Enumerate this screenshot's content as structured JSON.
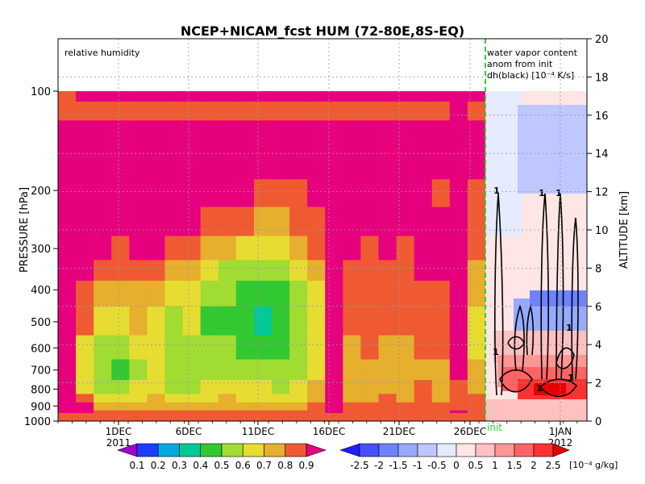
{
  "chart_data": {
    "type": "heatmap",
    "title": "NCEP+NICAM_fcst HUM (72-80E,8S-EQ)",
    "panels": {
      "left_label": "relative humidity",
      "right_labels": [
        "water vapor content",
        "anom from init",
        "dh(black) [10⁻⁴ K/s]"
      ],
      "init_marker": "init"
    },
    "y_left": {
      "label": "PRESSURE [hPa]",
      "scale": "log",
      "range": [
        1000,
        100
      ],
      "ticks": [
        "100",
        "200",
        "300",
        "400",
        "500",
        "600",
        "700",
        "800",
        "900",
        "1000"
      ]
    },
    "y_right": {
      "label": "ALTITUDE [km]",
      "range": [
        0,
        20
      ],
      "ticks": [
        "0",
        "2",
        "4",
        "6",
        "8",
        "10",
        "12",
        "14",
        "16",
        "18",
        "20"
      ]
    },
    "x": {
      "ticks": [
        "1DEC",
        "6DEC",
        "11DEC",
        "16DEC",
        "21DEC",
        "26DEC",
        "1JAN"
      ],
      "year_labels": [
        "2011",
        "2012"
      ]
    },
    "colorbar_rh": {
      "labels": [
        "0.1",
        "0.2",
        "0.3",
        "0.4",
        "0.5",
        "0.6",
        "0.7",
        "0.8",
        "0.9"
      ],
      "colors": [
        "#a000c8",
        "#1e3cff",
        "#00aadc",
        "#00c896",
        "#32c832",
        "#a0dc32",
        "#e6dc32",
        "#e6af2d",
        "#f05a32",
        "#e6007d"
      ]
    },
    "colorbar_anom": {
      "labels": [
        "-2.5",
        "-2",
        "-1.5",
        "-1",
        "-0.5",
        "0",
        "0.5",
        "1",
        "1.5",
        "2",
        "2.5"
      ],
      "unit": "[10⁻⁴ g/kg]",
      "colors": [
        "#1e1eff",
        "#4650ff",
        "#6e82ff",
        "#96aaff",
        "#bec8ff",
        "#e6ebff",
        "#ffe6e6",
        "#ffc0c0",
        "#ff9696",
        "#ff6464",
        "#ff3232",
        "#e60000"
      ]
    },
    "contour_label": "1",
    "rh_columns": [
      [
        0.9,
        0.9,
        0.9,
        0.9,
        0.9,
        0.9,
        0.9,
        0.9,
        0.9,
        0.9,
        0.9,
        0.9,
        0.9,
        0.9,
        0.9,
        0.85,
        0.8,
        0.8
      ],
      [
        0.9,
        0.9,
        0.85,
        0.75,
        0.6,
        0.55,
        0.6,
        0.75,
        0.8,
        0.85,
        0.9,
        0.9,
        0.9,
        0.9,
        0.9,
        0.85,
        0.8,
        0.85
      ],
      [
        0.85,
        0.8,
        0.7,
        0.6,
        0.5,
        0.45,
        0.5,
        0.55,
        0.65,
        0.75,
        0.85,
        0.9,
        0.9,
        0.9,
        0.9,
        0.9,
        0.8,
        0.85
      ],
      [
        0.8,
        0.75,
        0.65,
        0.55,
        0.45,
        0.4,
        0.45,
        0.55,
        0.65,
        0.75,
        0.8,
        0.9,
        0.9,
        0.9,
        0.9,
        0.85,
        0.8,
        0.85
      ],
      [
        0.8,
        0.75,
        0.7,
        0.6,
        0.55,
        0.5,
        0.55,
        0.65,
        0.7,
        0.8,
        0.85,
        0.9,
        0.9,
        0.9,
        0.9,
        0.85,
        0.8,
        0.85
      ],
      [
        0.8,
        0.75,
        0.7,
        0.65,
        0.6,
        0.55,
        0.55,
        0.6,
        0.7,
        0.75,
        0.85,
        0.85,
        0.9,
        0.9,
        0.9,
        0.85,
        0.8,
        0.85
      ],
      [
        0.8,
        0.75,
        0.7,
        0.6,
        0.5,
        0.45,
        0.45,
        0.5,
        0.6,
        0.7,
        0.8,
        0.85,
        0.9,
        0.9,
        0.9,
        0.85,
        0.8,
        0.85
      ],
      [
        0.8,
        0.75,
        0.7,
        0.6,
        0.5,
        0.45,
        0.5,
        0.55,
        0.6,
        0.7,
        0.8,
        0.85,
        0.9,
        0.9,
        0.9,
        0.85,
        0.8,
        0.85
      ],
      [
        0.8,
        0.75,
        0.7,
        0.6,
        0.55,
        0.5,
        0.45,
        0.4,
        0.45,
        0.55,
        0.7,
        0.8,
        0.85,
        0.9,
        0.9,
        0.85,
        0.8,
        0.85
      ],
      [
        0.8,
        0.75,
        0.7,
        0.65,
        0.55,
        0.5,
        0.45,
        0.4,
        0.45,
        0.5,
        0.65,
        0.75,
        0.85,
        0.9,
        0.9,
        0.85,
        0.8,
        0.85
      ],
      [
        0.8,
        0.75,
        0.7,
        0.6,
        0.55,
        0.45,
        0.4,
        0.35,
        0.35,
        0.45,
        0.6,
        0.75,
        0.85,
        0.9,
        0.9,
        0.85,
        0.8,
        0.85
      ],
      [
        0.8,
        0.75,
        0.7,
        0.6,
        0.55,
        0.45,
        0.35,
        0.3,
        0.35,
        0.45,
        0.55,
        0.7,
        0.8,
        0.85,
        0.9,
        0.85,
        0.8,
        0.85
      ],
      [
        0.8,
        0.75,
        0.7,
        0.6,
        0.5,
        0.45,
        0.4,
        0.35,
        0.4,
        0.45,
        0.55,
        0.7,
        0.8,
        0.85,
        0.9,
        0.85,
        0.8,
        0.85
      ],
      [
        0.8,
        0.75,
        0.7,
        0.6,
        0.55,
        0.5,
        0.45,
        0.45,
        0.5,
        0.55,
        0.65,
        0.75,
        0.8,
        0.85,
        0.9,
        0.85,
        0.8,
        0.85
      ],
      [
        0.85,
        0.8,
        0.75,
        0.7,
        0.65,
        0.6,
        0.55,
        0.55,
        0.6,
        0.65,
        0.75,
        0.8,
        0.85,
        0.9,
        0.9,
        0.85,
        0.8,
        0.85
      ],
      [
        0.9,
        0.9,
        0.85,
        0.85,
        0.85,
        0.9,
        0.9,
        0.9,
        0.9,
        0.9,
        0.9,
        0.9,
        0.9,
        0.9,
        0.9,
        0.85,
        0.8,
        0.85
      ],
      [
        0.85,
        0.8,
        0.75,
        0.7,
        0.65,
        0.7,
        0.7,
        0.75,
        0.75,
        0.8,
        0.85,
        0.9,
        0.9,
        0.9,
        0.9,
        0.85,
        0.8,
        0.85
      ],
      [
        0.8,
        0.8,
        0.75,
        0.7,
        0.7,
        0.7,
        0.75,
        0.75,
        0.8,
        0.8,
        0.8,
        0.85,
        0.9,
        0.9,
        0.9,
        0.85,
        0.8,
        0.85
      ],
      [
        0.8,
        0.8,
        0.75,
        0.75,
        0.7,
        0.7,
        0.7,
        0.75,
        0.75,
        0.8,
        0.85,
        0.85,
        0.9,
        0.9,
        0.9,
        0.85,
        0.8,
        0.85
      ],
      [
        0.8,
        0.75,
        0.75,
        0.7,
        0.7,
        0.65,
        0.7,
        0.75,
        0.8,
        0.8,
        0.8,
        0.85,
        0.9,
        0.9,
        0.9,
        0.85,
        0.8,
        0.85
      ],
      [
        0.85,
        0.8,
        0.8,
        0.75,
        0.75,
        0.7,
        0.75,
        0.8,
        0.8,
        0.85,
        0.85,
        0.85,
        0.85,
        0.9,
        0.9,
        0.85,
        0.8,
        0.85
      ],
      [
        0.85,
        0.8,
        0.75,
        0.7,
        0.7,
        0.7,
        0.75,
        0.75,
        0.8,
        0.85,
        0.85,
        0.85,
        0.8,
        0.85,
        0.85,
        0.85,
        0.8,
        0.85
      ],
      [
        0.9,
        0.85,
        0.8,
        0.8,
        0.8,
        0.85,
        0.85,
        0.9,
        0.9,
        0.9,
        0.9,
        0.9,
        0.9,
        0.9,
        0.85,
        0.85,
        0.85,
        0.85
      ],
      [
        0.85,
        0.8,
        0.75,
        0.75,
        0.7,
        0.65,
        0.6,
        0.6,
        0.65,
        0.7,
        0.75,
        0.8,
        0.8,
        0.85,
        0.85,
        0.85,
        0.8,
        0.85
      ]
    ],
    "rh_levels_hPa": [
      1000,
      950,
      900,
      850,
      800,
      700,
      600,
      500,
      400,
      350,
      300,
      250,
      200,
      170,
      150,
      130,
      115,
      100
    ]
  }
}
